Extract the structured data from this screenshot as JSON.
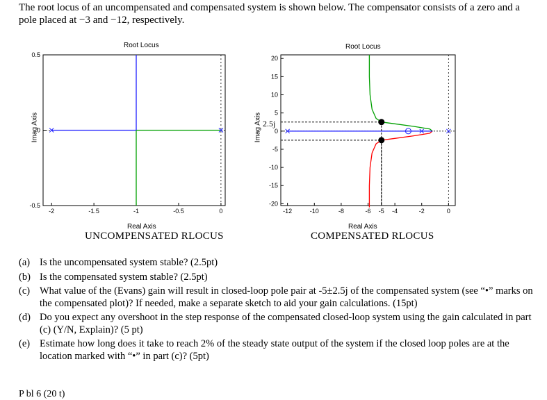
{
  "intro": "The root locus of an uncompensated and compensated system is shown below. The compensator consists of a zero and a pole placed at −3 and −12, respectively.",
  "left_plot": {
    "title": "Root Locus",
    "xlabel": "Real Axis",
    "ylabel": "Imag Axis",
    "caption": "UNCOMPENSATED RLOCUS",
    "xticks": [
      "-2",
      "-1.5",
      "-1",
      "-0.5",
      "0"
    ],
    "yticks": [
      "0.5",
      "0",
      "-0.5"
    ]
  },
  "right_plot": {
    "title": "Root Locus",
    "xlabel": "Real Axis",
    "ylabel": "Imag Axis",
    "caption": "COMPENSATED RLOCUS",
    "xticks": [
      "-12",
      "-10",
      "-8",
      "-6",
      "-5",
      "-4",
      "-2",
      "0"
    ],
    "yticks": [
      "20",
      "15",
      "10",
      "5",
      "0",
      "-5",
      "-10",
      "-15",
      "-20"
    ],
    "annotation": "2.5j"
  },
  "questions": [
    {
      "label": "(a)",
      "text": "Is the uncompensated system stable? (2.5pt)"
    },
    {
      "label": "(b)",
      "text": "Is the compensated system stable? (2.5pt)"
    },
    {
      "label": "(c)",
      "text": "What value of the (Evans) gain will result in closed-loop pole pair at -5±2.5j of the compensated system (see “•” marks on the compensated plot)? If needed, make a separate sketch to aid your gain calculations. (15pt)"
    },
    {
      "label": "(d)",
      "text": "Do you expect any overshoot in the step response of the compensated closed-loop system using the gain calculated in part (c) (Y/N, Explain)? (5 pt)"
    },
    {
      "label": "(e)",
      "text": "Estimate how long does it take to reach 2% of the steady state output of the system if the closed loop poles are at the location marked with “•” in part (c)? (5pt)"
    }
  ],
  "footer_fragment": "P    bl    6 (20   t)",
  "chart_data": [
    {
      "type": "line",
      "title": "Root Locus",
      "xlabel": "Real Axis",
      "ylabel": "Imag Axis",
      "xlim": [
        -2.1,
        0.05
      ],
      "ylim": [
        -0.5,
        0.5
      ],
      "series": [
        {
          "values": [
            [
              -2,
              0
            ],
            [
              -1,
              0
            ]
          ],
          "color": "#1f1fff"
        },
        {
          "values": [
            [
              0,
              0
            ],
            [
              -1,
              0
            ]
          ],
          "color": "#00a000"
        },
        {
          "values": [
            [
              -1,
              0
            ],
            [
              -1,
              0.5
            ]
          ],
          "color": "#1f1fff"
        },
        {
          "values": [
            [
              -1,
              0
            ],
            [
              -1,
              -0.5
            ]
          ],
          "color": "#00a000"
        }
      ],
      "poles": [
        [
          -2,
          0
        ],
        [
          0,
          0
        ]
      ]
    },
    {
      "type": "line",
      "title": "Root Locus",
      "xlabel": "Real Axis",
      "ylabel": "Imag Axis",
      "xlim": [
        -12.5,
        0.5
      ],
      "ylim": [
        -20.5,
        21
      ],
      "series": [
        {
          "values": [
            [
              -5.9,
              21
            ],
            [
              -5.9,
              15
            ],
            [
              -5.85,
              10
            ],
            [
              -5.7,
              6
            ],
            [
              -5.4,
              3.5
            ],
            [
              -5,
              2.5
            ],
            [
              -4,
              2
            ],
            [
              -2.6,
              1.3
            ],
            [
              -1.4,
              0.6
            ],
            [
              -1.2,
              0
            ]
          ],
          "color": "#00a000"
        },
        {
          "values": [
            [
              -5.9,
              -21
            ],
            [
              -5.9,
              -15
            ],
            [
              -5.85,
              -10
            ],
            [
              -5.7,
              -6
            ],
            [
              -5.4,
              -3.5
            ],
            [
              -5,
              -2.5
            ],
            [
              -4,
              -2
            ],
            [
              -2.6,
              -1.3
            ],
            [
              -1.4,
              -0.6
            ],
            [
              -1.2,
              0
            ]
          ],
          "color": "#ff0000"
        },
        {
          "values": [
            [
              -12,
              0
            ],
            [
              -3,
              0
            ]
          ],
          "color": "#1f1fff"
        },
        {
          "values": [
            [
              -3,
              0
            ],
            [
              -1.2,
              0
            ]
          ],
          "color": "#1f1fff"
        }
      ],
      "marked_points": [
        [
          -5,
          2.5
        ],
        [
          -5,
          -2.5
        ]
      ],
      "zeros": [
        [
          -3,
          0
        ]
      ],
      "poles": [
        [
          -12,
          0
        ],
        [
          -2,
          0
        ],
        [
          0,
          0
        ]
      ]
    }
  ]
}
